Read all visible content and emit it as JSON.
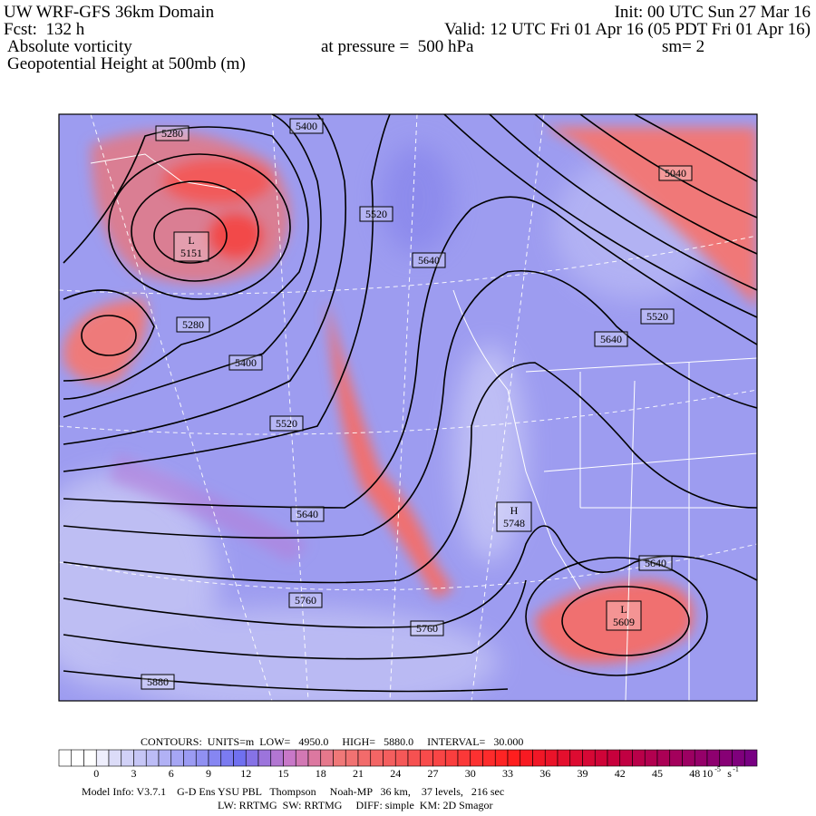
{
  "header": {
    "title": "UW WRF-GFS 36km Domain",
    "init": "Init: 00 UTC Sun 27 Mar 16",
    "forecast": "Fcst:  132 h",
    "valid": "Valid: 12 UTC Fri 01 Apr 16 (05 PDT Fri 01 Apr 16)",
    "field": "Absolute vorticity",
    "pressure": "at pressure =  500 hPa",
    "smoothing": "sm= 2",
    "contour_field": "Geopotential Height at 500mb (m)"
  },
  "map": {
    "labels": [
      "5280",
      "5400",
      "5520",
      "5640",
      "5040",
      "5520",
      "5640",
      "5280",
      "5400",
      "5520",
      "5640",
      "5760",
      "5760",
      "5880",
      "5640"
    ],
    "centers": [
      {
        "type": "L",
        "value": "5151"
      },
      {
        "type": "H",
        "value": "5748"
      },
      {
        "type": "L",
        "value": "5609"
      }
    ]
  },
  "footer": {
    "contours": "CONTOURS:  UNITS=m  LOW=   4950.0     HIGH=   5880.0     INTERVAL=   30.000",
    "colorbar": {
      "ticks": [
        0,
        3,
        6,
        9,
        12,
        15,
        18,
        21,
        24,
        27,
        30,
        33,
        36,
        39,
        42,
        45,
        48
      ],
      "scale": "10",
      "scale_exponent": "-5",
      "unit": "s",
      "unit_exponent": "-1"
    },
    "model_info": "Model Info: V3.7.1    G-D Ens YSU PBL   Thompson     Noah-MP   36 km,    37 levels,   216 sec",
    "physics": "LW: RRTMG  SW: RRTMG     DIFF: simple  KM: 2D Smagor"
  }
}
